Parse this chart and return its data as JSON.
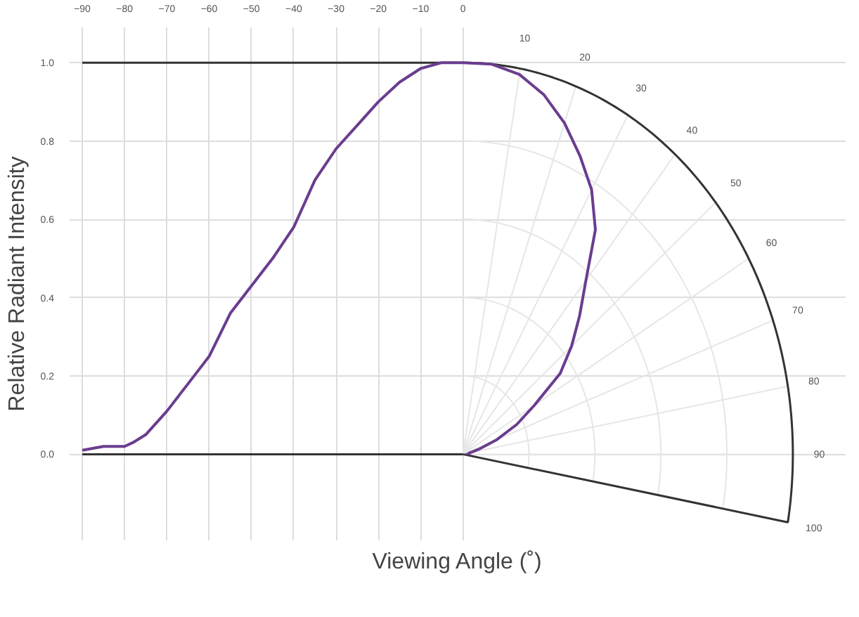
{
  "chart_data": {
    "type": "line",
    "xlabel": "Viewing Angle (˚)",
    "ylabel": "Relative Radiant Intensity",
    "x": [
      -90,
      -85,
      -80,
      -78,
      -75,
      -70,
      -65,
      -60,
      -55,
      -50,
      -45,
      -40,
      -35,
      -30,
      -25,
      -20,
      -15,
      -10,
      -5,
      0
    ],
    "series": [
      {
        "color": "#6a3d8f",
        "values": [
          0.01,
          0.02,
          0.02,
          0.03,
          0.05,
          0.11,
          0.18,
          0.25,
          0.36,
          0.43,
          0.5,
          0.58,
          0.7,
          0.78,
          0.84,
          0.9,
          0.95,
          0.985,
          1.0,
          1.0
        ]
      }
    ],
    "xlim": [
      -90,
      0
    ],
    "xticks": [
      -90,
      -80,
      -70,
      -60,
      -50,
      -40,
      -30,
      -20,
      -10,
      0
    ],
    "ylim": [
      0,
      1
    ],
    "yticks": [
      {
        "value": 0,
        "label": "0.0"
      },
      {
        "value": 0.2,
        "label": "0.2"
      },
      {
        "value": 0.4,
        "label": "0.4"
      },
      {
        "value": 0.6,
        "label": "0.6"
      },
      {
        "value": 0.8,
        "label": "0.8"
      },
      {
        "value": 1,
        "label": "1.0"
      }
    ],
    "annotations": [
      "10",
      "20",
      "30",
      "40",
      "50",
      "60",
      "70",
      "80",
      "90",
      "100"
    ],
    "ref_lines": [
      {
        "axis": "y",
        "value": 1,
        "color": "#333333",
        "line_style": "solid"
      },
      {
        "axis": "y",
        "value": 0,
        "color": "#333333",
        "line_style": "solid"
      }
    ],
    "grid": true,
    "marker": "none",
    "line_style": "solid"
  }
}
